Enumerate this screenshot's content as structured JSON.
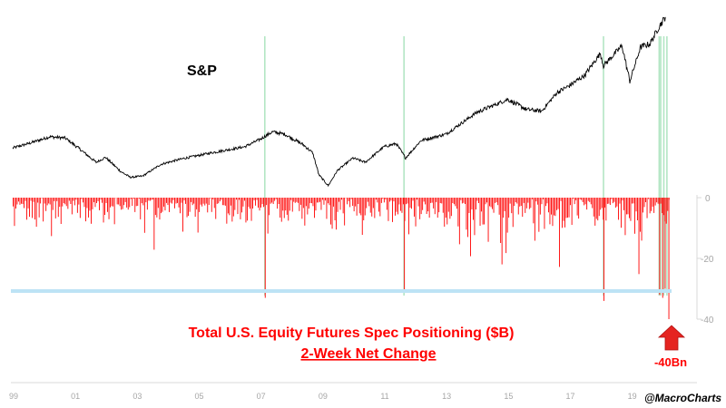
{
  "chart_data": {
    "type": "line+bar",
    "title_lines": [
      "Total U.S. Equity Futures Spec Positioning ($B)",
      "2-Week Net Change"
    ],
    "top_label": "S&P",
    "callout": "-40Bn",
    "credit": "@MacroCharts",
    "x_ticks": [
      "99",
      "01",
      "03",
      "05",
      "07",
      "09",
      "11",
      "13",
      "15",
      "17",
      "19"
    ],
    "x_range": [
      1999.0,
      2020.3
    ],
    "y_ticks": [
      "0",
      "-20",
      "-40"
    ],
    "bar_ylim": [
      -40,
      0
    ],
    "threshold": -31,
    "colors": {
      "sp_line": "#000000",
      "bars": "#ff0000",
      "threshold": "#bde3f5",
      "marker": "#b3e6c4",
      "title": "#ff0000",
      "axis": "#d9d9d9",
      "arrow": "#e52420"
    },
    "sp_anchors": [
      [
        1999.0,
        1280
      ],
      [
        1999.5,
        1350
      ],
      [
        2000.2,
        1460
      ],
      [
        2000.7,
        1440
      ],
      [
        2001.2,
        1250
      ],
      [
        2001.7,
        1050
      ],
      [
        2002.0,
        1130
      ],
      [
        2002.5,
        900
      ],
      [
        2002.8,
        810
      ],
      [
        2003.2,
        830
      ],
      [
        2003.8,
        1020
      ],
      [
        2004.5,
        1110
      ],
      [
        2005.5,
        1210
      ],
      [
        2006.5,
        1300
      ],
      [
        2007.0,
        1420
      ],
      [
        2007.4,
        1540
      ],
      [
        2007.8,
        1500
      ],
      [
        2008.4,
        1330
      ],
      [
        2008.7,
        1200
      ],
      [
        2008.9,
        850
      ],
      [
        2009.2,
        676
      ],
      [
        2009.5,
        920
      ],
      [
        2010.0,
        1120
      ],
      [
        2010.4,
        1050
      ],
      [
        2011.0,
        1300
      ],
      [
        2011.4,
        1350
      ],
      [
        2011.7,
        1120
      ],
      [
        2012.2,
        1400
      ],
      [
        2013.0,
        1500
      ],
      [
        2014.0,
        1850
      ],
      [
        2015.0,
        2060
      ],
      [
        2015.6,
        1900
      ],
      [
        2016.1,
        1870
      ],
      [
        2016.6,
        2170
      ],
      [
        2017.0,
        2280
      ],
      [
        2017.5,
        2450
      ],
      [
        2018.0,
        2800
      ],
      [
        2018.1,
        2600
      ],
      [
        2018.7,
        2920
      ],
      [
        2018.95,
        2350
      ],
      [
        2019.3,
        2900
      ],
      [
        2019.6,
        2950
      ],
      [
        2019.9,
        3230
      ],
      [
        2020.1,
        3380
      ]
    ],
    "sp_ylim": [
      600,
      3450
    ],
    "markers": [
      2007.15,
      2011.65,
      2018.1,
      2019.9,
      2019.95,
      2020.05,
      2020.15
    ],
    "spikes": [
      [
        2007.15,
        -33
      ],
      [
        2011.65,
        -31
      ],
      [
        2018.1,
        -34
      ],
      [
        2019.9,
        -32
      ],
      [
        2020.0,
        -33
      ],
      [
        2020.08,
        -30
      ],
      [
        2020.2,
        -40
      ]
    ],
    "bars_sample_count": 480
  }
}
